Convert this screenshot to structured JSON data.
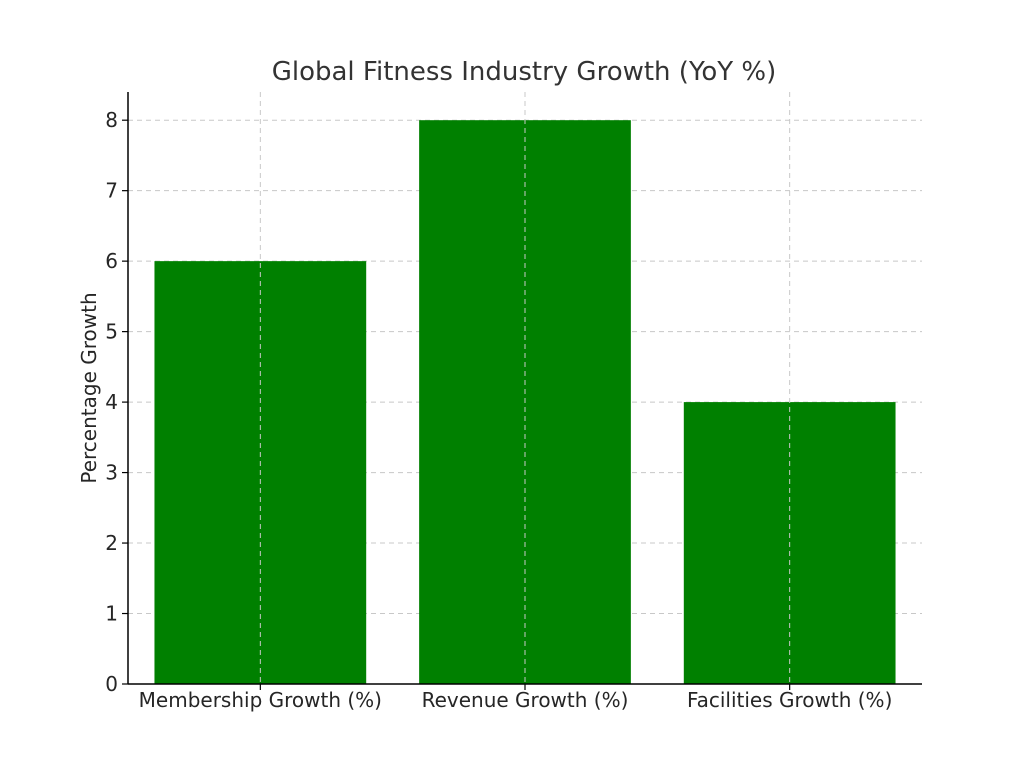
{
  "chart_data": {
    "type": "bar",
    "title": "Global Fitness Industry Growth (YoY %)",
    "xlabel": "",
    "ylabel": "Percentage Growth",
    "categories": [
      "Membership Growth (%)",
      "Revenue Growth (%)",
      "Facilities Growth (%)"
    ],
    "values": [
      6,
      8,
      4
    ],
    "ylim": [
      0,
      8.4
    ],
    "yticks": [
      0,
      1,
      2,
      3,
      4,
      5,
      6,
      7,
      8
    ],
    "bar_color": "#008000",
    "grid": true
  }
}
